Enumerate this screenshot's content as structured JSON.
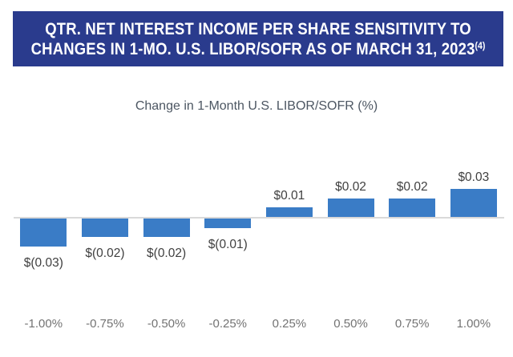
{
  "header": {
    "title_line1": "QTR. NET INTEREST INCOME PER SHARE SENSITIVITY TO",
    "title_line2": "CHANGES IN 1-MO. U.S. LIBOR/SOFR AS OF MARCH 31, 2023",
    "footnote_marker": "(4)",
    "background_color": "#2A3B8D",
    "text_color": "#FFFFFF"
  },
  "chart_data": {
    "type": "bar",
    "title": "QTR. NET INTEREST INCOME PER SHARE SENSITIVITY TO CHANGES IN 1-MO. U.S. LIBOR/SOFR AS OF MARCH 31, 2023(4)",
    "xlabel": "Change in 1-Month U.S. LIBOR/SOFR (%)",
    "categories": [
      "-1.00%",
      "-0.75%",
      "-0.50%",
      "-0.25%",
      "0.25%",
      "0.50%",
      "0.75%",
      "1.00%"
    ],
    "values": [
      -0.03,
      -0.02,
      -0.02,
      -0.01,
      0.01,
      0.02,
      0.02,
      0.03
    ],
    "bar_labels": [
      "$(0.03)",
      "$(0.02)",
      "$(0.02)",
      "$(0.01)",
      "$0.01",
      "$0.02",
      "$0.02",
      "$0.03"
    ],
    "bar_color": "#3A7CC6",
    "axis_line_color": "#D9D9D9",
    "value_label_color": "#3F3F3F",
    "tick_label_color": "#737373",
    "xlabel_color": "#4C5662",
    "grid": "off",
    "legend": "none"
  }
}
